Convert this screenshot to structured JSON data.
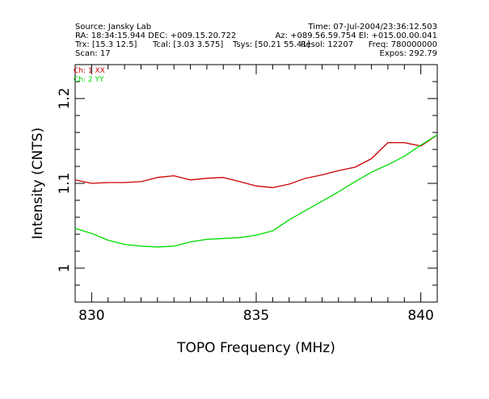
{
  "header": {
    "source": "Source: Jansky Lab",
    "time": "Time: 07-Jul-2004/23:36:12.503",
    "ra_dec": "RA: 18:34:15.944 DEC: +009.15.20.722",
    "az_el": "Az: +089.56.59.754 El: +015.00.00.041",
    "trx": "Trx: [15.3 12.5]",
    "tcal": "Tcal: [3.03 3.575]",
    "tsys": "Tsys: [50.21 55.41]",
    "resol": "Resol: 12207",
    "freq": "Freq: 780000000",
    "scan": "Scan: 17",
    "expos": "Expos: 292.79"
  },
  "colors": {
    "ch1": "#cc0000",
    "ch2": "#00dd00",
    "axis": "#000000"
  },
  "chart_data": {
    "type": "line",
    "xlabel": "TOPO Frequency (MHz)",
    "ylabel": "Intensity (CNTS)",
    "xlim": [
      829.5,
      840.5
    ],
    "ylim": [
      0.96,
      1.24
    ],
    "xticks": [
      830,
      835,
      840
    ],
    "xtick_labels": [
      "830",
      "835",
      "840"
    ],
    "yticks": [
      1.0,
      1.1,
      1.2
    ],
    "ytick_labels": [
      "1",
      "1.1",
      "1.2"
    ],
    "legend_placement": "top-left",
    "series": [
      {
        "name": "Ch: 1 XX",
        "x": [
          829.5,
          830.0,
          830.5,
          831.0,
          831.5,
          832.0,
          832.5,
          833.0,
          833.5,
          834.0,
          834.5,
          835.0,
          835.5,
          836.0,
          836.5,
          837.0,
          837.5,
          838.0,
          838.5,
          839.0,
          839.5,
          840.0,
          840.5
        ],
        "y": [
          1.104,
          1.1,
          1.101,
          1.101,
          1.102,
          1.107,
          1.109,
          1.104,
          1.106,
          1.107,
          1.102,
          1.097,
          1.095,
          1.099,
          1.106,
          1.11,
          1.115,
          1.119,
          1.129,
          1.148,
          1.148,
          1.144,
          1.157
        ]
      },
      {
        "name": "Ch: 2 YY",
        "x": [
          829.5,
          830.0,
          830.5,
          831.0,
          831.5,
          832.0,
          832.5,
          833.0,
          833.5,
          834.0,
          834.5,
          835.0,
          835.5,
          836.0,
          836.5,
          837.0,
          837.5,
          838.0,
          838.5,
          839.0,
          839.5,
          840.0,
          840.5
        ],
        "y": [
          1.047,
          1.041,
          1.033,
          1.028,
          1.026,
          1.025,
          1.026,
          1.031,
          1.034,
          1.035,
          1.036,
          1.039,
          1.044,
          1.057,
          1.068,
          1.079,
          1.09,
          1.102,
          1.113,
          1.122,
          1.132,
          1.145,
          1.157
        ]
      }
    ]
  }
}
